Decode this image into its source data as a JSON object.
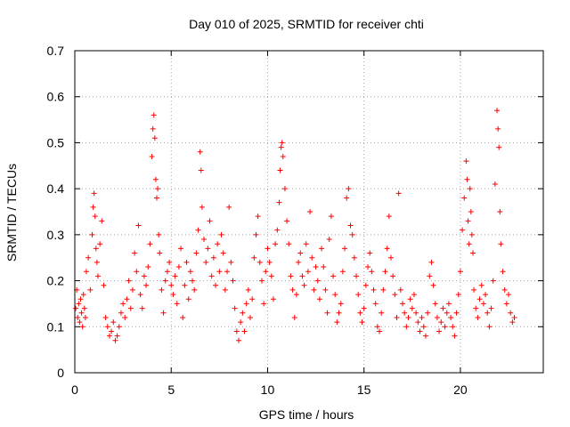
{
  "chart_data": {
    "type": "scatter",
    "title": "Day 010 of 2025, SRMTID for receiver chti",
    "xlabel": "GPS time / hours",
    "ylabel": "SRMTID / TECUs",
    "xlim": [
      0,
      24.3
    ],
    "ylim": [
      0,
      0.7
    ],
    "xticks": [
      0,
      5,
      10,
      15,
      20
    ],
    "xtick_labels": [
      "0",
      "5",
      "10",
      "15",
      "20"
    ],
    "yticks": [
      0,
      0.1,
      0.2,
      0.3,
      0.4,
      0.5,
      0.6,
      0.7
    ],
    "ytick_labels": [
      "0",
      "0.1",
      "0.2",
      "0.3",
      "0.4",
      "0.5",
      "0.6",
      "0.7"
    ],
    "grid": true,
    "marker": "+",
    "color": "#ff0000",
    "series": [
      {
        "name": "SRMTID",
        "x": [
          0.05,
          0.1,
          0.15,
          0.2,
          0.25,
          0.3,
          0.35,
          0.4,
          0.45,
          0.5,
          0.55,
          0.6,
          0.7,
          0.8,
          0.9,
          0.95,
          1.0,
          1.05,
          1.1,
          1.15,
          1.2,
          1.3,
          1.4,
          1.5,
          1.6,
          1.7,
          1.8,
          1.9,
          2.0,
          2.1,
          2.2,
          2.3,
          2.4,
          2.5,
          2.6,
          2.7,
          2.8,
          2.9,
          3.0,
          3.1,
          3.2,
          3.3,
          3.4,
          3.5,
          3.6,
          3.7,
          3.8,
          3.9,
          4.0,
          4.05,
          4.1,
          4.15,
          4.2,
          4.25,
          4.3,
          4.35,
          4.4,
          4.5,
          4.6,
          4.7,
          4.8,
          4.9,
          5.0,
          5.1,
          5.2,
          5.3,
          5.4,
          5.5,
          5.6,
          5.7,
          5.8,
          5.9,
          6.0,
          6.1,
          6.2,
          6.3,
          6.4,
          6.5,
          6.55,
          6.6,
          6.7,
          6.8,
          6.9,
          7.0,
          7.1,
          7.2,
          7.3,
          7.4,
          7.5,
          7.6,
          7.7,
          7.8,
          7.9,
          8.0,
          8.1,
          8.2,
          8.3,
          8.4,
          8.5,
          8.6,
          8.7,
          8.8,
          8.9,
          9.0,
          9.1,
          9.2,
          9.3,
          9.4,
          9.5,
          9.6,
          9.7,
          9.8,
          9.9,
          10.0,
          10.1,
          10.2,
          10.3,
          10.4,
          10.5,
          10.6,
          10.65,
          10.7,
          10.75,
          10.8,
          10.9,
          11.0,
          11.1,
          11.2,
          11.3,
          11.4,
          11.5,
          11.6,
          11.7,
          11.8,
          11.9,
          12.0,
          12.1,
          12.2,
          12.3,
          12.4,
          12.5,
          12.6,
          12.7,
          12.8,
          12.9,
          13.0,
          13.1,
          13.2,
          13.3,
          13.4,
          13.5,
          13.6,
          13.7,
          13.8,
          13.9,
          14.0,
          14.1,
          14.2,
          14.3,
          14.4,
          14.5,
          14.6,
          14.7,
          14.8,
          14.9,
          15.0,
          15.1,
          15.2,
          15.3,
          15.4,
          15.5,
          15.6,
          15.7,
          15.8,
          15.9,
          16.0,
          16.1,
          16.2,
          16.3,
          16.4,
          16.5,
          16.6,
          16.7,
          16.8,
          16.9,
          17.0,
          17.1,
          17.2,
          17.3,
          17.4,
          17.5,
          17.6,
          17.7,
          17.8,
          17.9,
          18.0,
          18.1,
          18.2,
          18.3,
          18.4,
          18.5,
          18.6,
          18.7,
          18.8,
          18.9,
          19.0,
          19.1,
          19.2,
          19.3,
          19.4,
          19.5,
          19.6,
          19.7,
          19.8,
          19.9,
          20.0,
          20.1,
          20.2,
          20.3,
          20.35,
          20.4,
          20.45,
          20.5,
          20.55,
          20.6,
          20.65,
          20.7,
          20.8,
          20.9,
          21.0,
          21.1,
          21.2,
          21.3,
          21.4,
          21.5,
          21.6,
          21.7,
          21.8,
          21.9,
          21.95,
          22.0,
          22.05,
          22.1,
          22.2,
          22.3,
          22.4,
          22.5,
          22.6,
          22.7,
          22.8
        ],
        "y": [
          0.14,
          0.18,
          0.12,
          0.15,
          0.11,
          0.16,
          0.13,
          0.1,
          0.17,
          0.14,
          0.12,
          0.22,
          0.25,
          0.18,
          0.3,
          0.36,
          0.39,
          0.34,
          0.27,
          0.24,
          0.21,
          0.28,
          0.33,
          0.19,
          0.12,
          0.1,
          0.08,
          0.09,
          0.11,
          0.07,
          0.08,
          0.1,
          0.13,
          0.15,
          0.12,
          0.16,
          0.2,
          0.14,
          0.18,
          0.26,
          0.22,
          0.32,
          0.17,
          0.14,
          0.21,
          0.19,
          0.23,
          0.28,
          0.47,
          0.53,
          0.56,
          0.51,
          0.42,
          0.38,
          0.4,
          0.3,
          0.26,
          0.18,
          0.13,
          0.2,
          0.22,
          0.24,
          0.19,
          0.17,
          0.21,
          0.15,
          0.23,
          0.27,
          0.12,
          0.19,
          0.24,
          0.16,
          0.22,
          0.2,
          0.18,
          0.26,
          0.31,
          0.48,
          0.44,
          0.36,
          0.29,
          0.24,
          0.27,
          0.33,
          0.21,
          0.25,
          0.19,
          0.28,
          0.22,
          0.3,
          0.26,
          0.18,
          0.22,
          0.36,
          0.24,
          0.2,
          0.14,
          0.09,
          0.07,
          0.11,
          0.13,
          0.09,
          0.15,
          0.18,
          0.12,
          0.16,
          0.25,
          0.3,
          0.34,
          0.24,
          0.2,
          0.15,
          0.22,
          0.27,
          0.24,
          0.21,
          0.16,
          0.28,
          0.31,
          0.37,
          0.44,
          0.49,
          0.5,
          0.47,
          0.4,
          0.33,
          0.28,
          0.21,
          0.18,
          0.12,
          0.17,
          0.24,
          0.26,
          0.21,
          0.19,
          0.28,
          0.22,
          0.35,
          0.25,
          0.18,
          0.23,
          0.2,
          0.16,
          0.27,
          0.23,
          0.18,
          0.13,
          0.29,
          0.34,
          0.21,
          0.17,
          0.11,
          0.13,
          0.15,
          0.22,
          0.27,
          0.38,
          0.4,
          0.32,
          0.3,
          0.25,
          0.21,
          0.17,
          0.13,
          0.11,
          0.14,
          0.19,
          0.23,
          0.26,
          0.22,
          0.18,
          0.15,
          0.1,
          0.09,
          0.13,
          0.18,
          0.22,
          0.27,
          0.34,
          0.25,
          0.21,
          0.17,
          0.12,
          0.39,
          0.18,
          0.15,
          0.13,
          0.1,
          0.12,
          0.16,
          0.14,
          0.17,
          0.13,
          0.11,
          0.09,
          0.12,
          0.1,
          0.08,
          0.13,
          0.21,
          0.24,
          0.19,
          0.15,
          0.12,
          0.09,
          0.11,
          0.14,
          0.1,
          0.13,
          0.15,
          0.12,
          0.1,
          0.08,
          0.13,
          0.17,
          0.22,
          0.31,
          0.38,
          0.46,
          0.42,
          0.33,
          0.28,
          0.4,
          0.35,
          0.3,
          0.26,
          0.18,
          0.14,
          0.12,
          0.16,
          0.19,
          0.15,
          0.17,
          0.13,
          0.1,
          0.14,
          0.2,
          0.41,
          0.57,
          0.53,
          0.49,
          0.35,
          0.28,
          0.22,
          0.18,
          0.15,
          0.17,
          0.13,
          0.11,
          0.12
        ]
      }
    ]
  }
}
